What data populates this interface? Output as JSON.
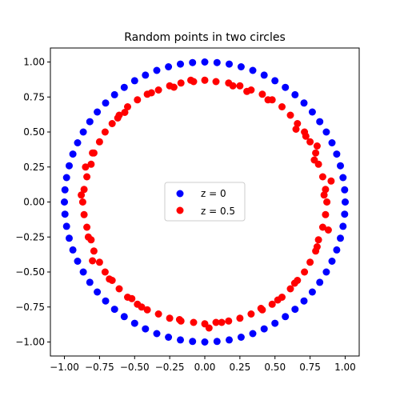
{
  "chart_data": {
    "type": "scatter",
    "title": "Random points in two circles",
    "xlabel": "",
    "ylabel": "",
    "xlim": [
      -1.1,
      1.1
    ],
    "ylim": [
      -1.1,
      1.1
    ],
    "xticks": [
      -1.0,
      -0.75,
      -0.5,
      -0.25,
      0.0,
      0.25,
      0.5,
      0.75,
      1.0
    ],
    "yticks": [
      -1.0,
      -0.75,
      -0.5,
      -0.25,
      0.0,
      0.25,
      0.5,
      0.75,
      1.0
    ],
    "xtick_labels": [
      "−1.00",
      "−0.75",
      "−0.50",
      "−0.25",
      "0.00",
      "0.25",
      "0.50",
      "0.75",
      "1.00"
    ],
    "ytick_labels": [
      "−1.00",
      "−0.75",
      "−0.50",
      "−0.25",
      "0.00",
      "0.25",
      "0.50",
      "0.75",
      "1.00"
    ],
    "grid": false,
    "legend_position": "center",
    "series": [
      {
        "name": "z = 0",
        "color": "#0000ff",
        "points": [
          [
            1.0,
            0.0
          ],
          [
            0.996,
            0.087
          ],
          [
            0.985,
            0.174
          ],
          [
            0.966,
            0.259
          ],
          [
            0.94,
            0.342
          ],
          [
            0.906,
            0.423
          ],
          [
            0.866,
            0.5
          ],
          [
            0.819,
            0.574
          ],
          [
            0.766,
            0.643
          ],
          [
            0.707,
            0.707
          ],
          [
            0.643,
            0.766
          ],
          [
            0.574,
            0.819
          ],
          [
            0.5,
            0.866
          ],
          [
            0.423,
            0.906
          ],
          [
            0.342,
            0.94
          ],
          [
            0.259,
            0.966
          ],
          [
            0.174,
            0.985
          ],
          [
            0.087,
            0.996
          ],
          [
            0.0,
            1.0
          ],
          [
            -0.087,
            0.996
          ],
          [
            -0.174,
            0.985
          ],
          [
            -0.259,
            0.966
          ],
          [
            -0.342,
            0.94
          ],
          [
            -0.423,
            0.906
          ],
          [
            -0.5,
            0.866
          ],
          [
            -0.574,
            0.819
          ],
          [
            -0.643,
            0.766
          ],
          [
            -0.707,
            0.707
          ],
          [
            -0.766,
            0.643
          ],
          [
            -0.819,
            0.574
          ],
          [
            -0.866,
            0.5
          ],
          [
            -0.906,
            0.423
          ],
          [
            -0.94,
            0.342
          ],
          [
            -0.966,
            0.259
          ],
          [
            -0.985,
            0.174
          ],
          [
            -0.996,
            0.087
          ],
          [
            -1.0,
            0.0
          ],
          [
            -0.996,
            -0.087
          ],
          [
            -0.985,
            -0.174
          ],
          [
            -0.966,
            -0.259
          ],
          [
            -0.94,
            -0.342
          ],
          [
            -0.906,
            -0.423
          ],
          [
            -0.866,
            -0.5
          ],
          [
            -0.819,
            -0.574
          ],
          [
            -0.766,
            -0.643
          ],
          [
            -0.707,
            -0.707
          ],
          [
            -0.643,
            -0.766
          ],
          [
            -0.574,
            -0.819
          ],
          [
            -0.5,
            -0.866
          ],
          [
            -0.423,
            -0.906
          ],
          [
            -0.342,
            -0.94
          ],
          [
            -0.259,
            -0.966
          ],
          [
            -0.174,
            -0.985
          ],
          [
            -0.087,
            -0.996
          ],
          [
            0.0,
            -1.0
          ],
          [
            0.087,
            -0.996
          ],
          [
            0.174,
            -0.985
          ],
          [
            0.259,
            -0.966
          ],
          [
            0.342,
            -0.94
          ],
          [
            0.423,
            -0.906
          ],
          [
            0.5,
            -0.866
          ],
          [
            0.574,
            -0.819
          ],
          [
            0.643,
            -0.766
          ],
          [
            0.707,
            -0.707
          ],
          [
            0.766,
            -0.643
          ],
          [
            0.819,
            -0.574
          ],
          [
            0.866,
            -0.5
          ],
          [
            0.906,
            -0.423
          ],
          [
            0.94,
            -0.342
          ],
          [
            0.966,
            -0.259
          ],
          [
            0.985,
            -0.174
          ],
          [
            0.996,
            -0.087
          ]
        ]
      },
      {
        "name": "z = 0.5",
        "color": "#ff0000",
        "points": [
          [
            0.87,
            0.0
          ],
          [
            0.86,
            0.09
          ],
          [
            0.84,
            0.18
          ],
          [
            0.81,
            0.27
          ],
          [
            0.79,
            0.35
          ],
          [
            0.75,
            0.43
          ],
          [
            0.71,
            0.5
          ],
          [
            0.66,
            0.56
          ],
          [
            0.61,
            0.62
          ],
          [
            0.55,
            0.68
          ],
          [
            0.48,
            0.73
          ],
          [
            0.41,
            0.77
          ],
          [
            0.33,
            0.8
          ],
          [
            0.25,
            0.83
          ],
          [
            0.17,
            0.85
          ],
          [
            0.08,
            0.86
          ],
          [
            0.0,
            0.87
          ],
          [
            -0.08,
            0.86
          ],
          [
            -0.17,
            0.85
          ],
          [
            -0.25,
            0.83
          ],
          [
            -0.33,
            0.8
          ],
          [
            -0.41,
            0.77
          ],
          [
            -0.48,
            0.73
          ],
          [
            -0.55,
            0.68
          ],
          [
            -0.61,
            0.62
          ],
          [
            -0.66,
            0.56
          ],
          [
            -0.71,
            0.5
          ],
          [
            -0.75,
            0.43
          ],
          [
            -0.79,
            0.35
          ],
          [
            -0.81,
            0.27
          ],
          [
            -0.84,
            0.18
          ],
          [
            -0.86,
            0.09
          ],
          [
            -0.87,
            0.0
          ],
          [
            -0.86,
            -0.09
          ],
          [
            -0.84,
            -0.18
          ],
          [
            -0.81,
            -0.27
          ],
          [
            -0.79,
            -0.35
          ],
          [
            -0.75,
            -0.43
          ],
          [
            -0.71,
            -0.5
          ],
          [
            -0.66,
            -0.56
          ],
          [
            -0.61,
            -0.62
          ],
          [
            -0.55,
            -0.68
          ],
          [
            -0.48,
            -0.73
          ],
          [
            -0.41,
            -0.77
          ],
          [
            -0.33,
            -0.8
          ],
          [
            -0.25,
            -0.83
          ],
          [
            -0.17,
            -0.85
          ],
          [
            -0.08,
            -0.86
          ],
          [
            0.0,
            -0.87
          ],
          [
            0.08,
            -0.86
          ],
          [
            0.17,
            -0.85
          ],
          [
            0.25,
            -0.83
          ],
          [
            0.33,
            -0.8
          ],
          [
            0.41,
            -0.77
          ],
          [
            0.48,
            -0.73
          ],
          [
            0.55,
            -0.68
          ],
          [
            0.61,
            -0.62
          ],
          [
            0.66,
            -0.56
          ],
          [
            0.71,
            -0.5
          ],
          [
            0.75,
            -0.43
          ],
          [
            0.79,
            -0.35
          ],
          [
            0.81,
            -0.27
          ],
          [
            0.84,
            -0.18
          ],
          [
            0.86,
            -0.09
          ],
          [
            0.85,
            0.05
          ],
          [
            0.78,
            0.3
          ],
          [
            0.65,
            0.52
          ],
          [
            0.45,
            0.73
          ],
          [
            0.2,
            0.83
          ],
          [
            -0.1,
            0.87
          ],
          [
            -0.38,
            0.78
          ],
          [
            -0.62,
            0.6
          ],
          [
            -0.8,
            0.35
          ],
          [
            -0.88,
            0.05
          ],
          [
            -0.83,
            -0.25
          ],
          [
            -0.68,
            -0.55
          ],
          [
            -0.45,
            -0.75
          ],
          [
            -0.18,
            -0.84
          ],
          [
            0.12,
            -0.86
          ],
          [
            0.4,
            -0.76
          ],
          [
            0.64,
            -0.58
          ],
          [
            0.8,
            -0.32
          ],
          [
            0.9,
            0.15
          ],
          [
            0.72,
            0.47
          ],
          [
            0.3,
            0.79
          ],
          [
            -0.22,
            0.82
          ],
          [
            -0.57,
            0.64
          ],
          [
            -0.85,
            0.25
          ],
          [
            -0.8,
            -0.42
          ],
          [
            -0.52,
            -0.69
          ],
          [
            0.03,
            -0.9
          ],
          [
            0.52,
            -0.7
          ],
          [
            0.88,
            -0.2
          ],
          [
            0.8,
            0.4
          ]
        ]
      }
    ]
  },
  "legend": {
    "items": [
      {
        "label": "z = 0",
        "color": "#0000ff"
      },
      {
        "label": "z = 0.5",
        "color": "#ff0000"
      }
    ]
  }
}
